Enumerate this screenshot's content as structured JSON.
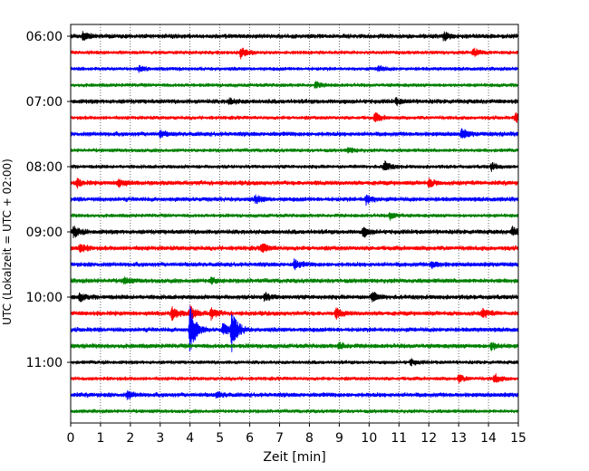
{
  "chart_data": {
    "type": "line",
    "title": "",
    "xlabel": "Zeit  [min]",
    "ylabel": "UTC (Lokalzeit = UTC + 02:00)",
    "xlim": [
      0,
      15
    ],
    "x_ticks": [
      "0",
      "1",
      "2",
      "3",
      "4",
      "5",
      "6",
      "7",
      "8",
      "9",
      "10",
      "11",
      "12",
      "13",
      "14",
      "15"
    ],
    "row_minutes": 15,
    "start_time": "06:00",
    "y_tick_labels": [
      "06:00",
      "07:00",
      "08:00",
      "09:00",
      "10:00",
      "11:00"
    ],
    "grid": "vertical dotted at each minute",
    "colors": [
      "#000000",
      "#ff0000",
      "#0000ff",
      "#008000"
    ],
    "rows": [
      {
        "time": "06:00",
        "color": "#000000",
        "noise": 3,
        "events": [
          {
            "x": 0.4,
            "amp": 4
          },
          {
            "x": 12.5,
            "amp": 4
          }
        ]
      },
      {
        "time": "06:15",
        "color": "#ff0000",
        "noise": 2.5,
        "events": [
          {
            "x": 5.7,
            "amp": 6
          },
          {
            "x": 13.5,
            "amp": 5
          }
        ]
      },
      {
        "time": "06:30",
        "color": "#0000ff",
        "noise": 2.5,
        "events": [
          {
            "x": 2.3,
            "amp": 3
          },
          {
            "x": 10.3,
            "amp": 3
          }
        ]
      },
      {
        "time": "06:45",
        "color": "#008000",
        "noise": 2.5,
        "events": [
          {
            "x": 8.2,
            "amp": 3
          }
        ]
      },
      {
        "time": "07:00",
        "color": "#000000",
        "noise": 3,
        "events": [
          {
            "x": 5.3,
            "amp": 3
          },
          {
            "x": 10.9,
            "amp": 3
          }
        ]
      },
      {
        "time": "07:15",
        "color": "#ff0000",
        "noise": 2.5,
        "events": [
          {
            "x": 10.2,
            "amp": 5
          },
          {
            "x": 14.9,
            "amp": 5
          }
        ]
      },
      {
        "time": "07:30",
        "color": "#0000ff",
        "noise": 3,
        "events": [
          {
            "x": 3.0,
            "amp": 3
          },
          {
            "x": 13.1,
            "amp": 5
          }
        ]
      },
      {
        "time": "07:45",
        "color": "#008000",
        "noise": 2.5,
        "events": [
          {
            "x": 9.3,
            "amp": 3
          }
        ]
      },
      {
        "time": "08:00",
        "color": "#000000",
        "noise": 2.5,
        "events": [
          {
            "x": 10.5,
            "amp": 6
          },
          {
            "x": 14.1,
            "amp": 4
          }
        ]
      },
      {
        "time": "08:15",
        "color": "#ff0000",
        "noise": 3,
        "events": [
          {
            "x": 0.2,
            "amp": 4
          },
          {
            "x": 1.6,
            "amp": 5
          },
          {
            "x": 12.0,
            "amp": 4
          }
        ]
      },
      {
        "time": "08:30",
        "color": "#0000ff",
        "noise": 3,
        "events": [
          {
            "x": 6.2,
            "amp": 4
          },
          {
            "x": 9.9,
            "amp": 5
          }
        ]
      },
      {
        "time": "08:45",
        "color": "#008000",
        "noise": 2.5,
        "events": [
          {
            "x": 10.7,
            "amp": 4
          }
        ]
      },
      {
        "time": "09:00",
        "color": "#000000",
        "noise": 3,
        "events": [
          {
            "x": 0.1,
            "amp": 6
          },
          {
            "x": 9.8,
            "amp": 5
          },
          {
            "x": 14.8,
            "amp": 5
          }
        ]
      },
      {
        "time": "09:15",
        "color": "#ff0000",
        "noise": 3,
        "events": [
          {
            "x": 0.3,
            "amp": 5
          },
          {
            "x": 6.4,
            "amp": 5
          }
        ]
      },
      {
        "time": "09:30",
        "color": "#0000ff",
        "noise": 3,
        "events": [
          {
            "x": 7.5,
            "amp": 5
          },
          {
            "x": 12.1,
            "amp": 4
          }
        ]
      },
      {
        "time": "09:45",
        "color": "#008000",
        "noise": 3,
        "events": [
          {
            "x": 1.8,
            "amp": 3
          },
          {
            "x": 4.7,
            "amp": 3
          }
        ]
      },
      {
        "time": "10:00",
        "color": "#000000",
        "noise": 3,
        "events": [
          {
            "x": 0.3,
            "amp": 4
          },
          {
            "x": 6.5,
            "amp": 4
          },
          {
            "x": 10.1,
            "amp": 5
          }
        ]
      },
      {
        "time": "10:15",
        "color": "#ff0000",
        "noise": 3,
        "events": [
          {
            "x": 3.4,
            "amp": 7
          },
          {
            "x": 4.0,
            "amp": 8
          },
          {
            "x": 4.7,
            "amp": 6
          },
          {
            "x": 8.9,
            "amp": 5
          },
          {
            "x": 13.8,
            "amp": 5
          }
        ]
      },
      {
        "time": "10:30",
        "color": "#0000ff",
        "noise": 3,
        "events": [
          {
            "x": 4.0,
            "amp": 26
          },
          {
            "x": 5.1,
            "amp": 7
          },
          {
            "x": 5.4,
            "amp": 22
          }
        ]
      },
      {
        "time": "10:45",
        "color": "#008000",
        "noise": 3,
        "events": [
          {
            "x": 9.0,
            "amp": 3
          },
          {
            "x": 14.1,
            "amp": 4
          }
        ]
      },
      {
        "time": "11:00",
        "color": "#000000",
        "noise": 2.5,
        "events": [
          {
            "x": 11.4,
            "amp": 3
          }
        ]
      },
      {
        "time": "11:15",
        "color": "#ff0000",
        "noise": 2.5,
        "events": [
          {
            "x": 13.0,
            "amp": 4
          },
          {
            "x": 14.2,
            "amp": 5
          }
        ]
      },
      {
        "time": "11:30",
        "color": "#0000ff",
        "noise": 3,
        "events": [
          {
            "x": 1.9,
            "amp": 4
          },
          {
            "x": 4.9,
            "amp": 3
          }
        ]
      },
      {
        "time": "11:45",
        "color": "#008000",
        "noise": 2.5,
        "events": []
      }
    ]
  }
}
